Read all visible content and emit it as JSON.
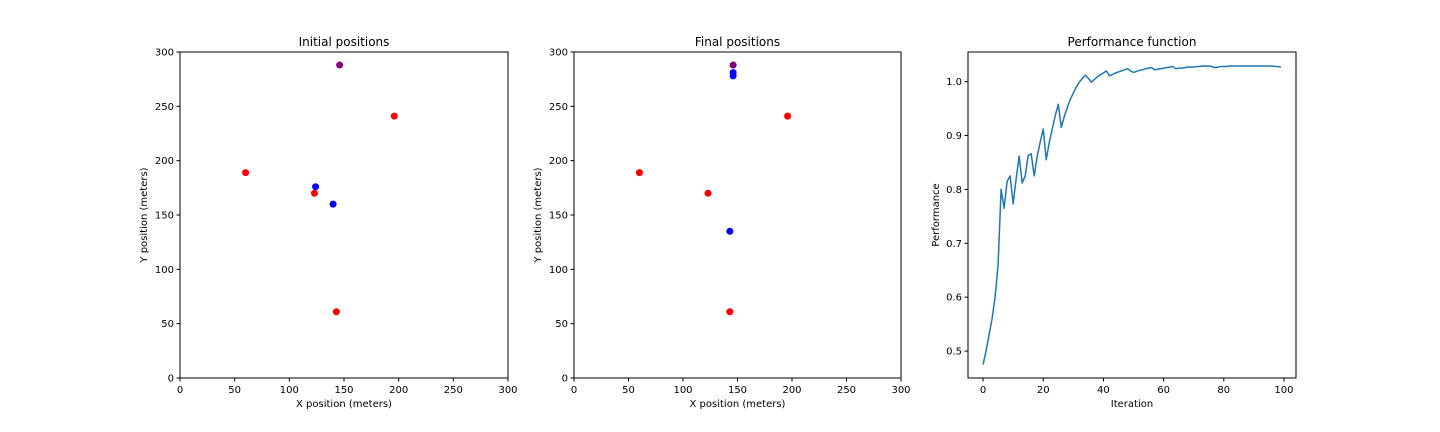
{
  "chart_data": [
    {
      "type": "scatter",
      "title": "Initial positions",
      "xlabel": "X position (meters)",
      "ylabel": "Y position (meters)",
      "xlim": [
        0,
        300
      ],
      "ylim": [
        0,
        300
      ],
      "xticks": [
        "0",
        "50",
        "100",
        "150",
        "200",
        "250",
        "300"
      ],
      "yticks": [
        "0",
        "50",
        "100",
        "150",
        "200",
        "250",
        "300"
      ],
      "points": [
        {
          "x": 146,
          "y": 288,
          "color": "#800080"
        },
        {
          "x": 196,
          "y": 241,
          "color": "#ff0000"
        },
        {
          "x": 60,
          "y": 189,
          "color": "#ff0000"
        },
        {
          "x": 123,
          "y": 170,
          "color": "#ff0000"
        },
        {
          "x": 143,
          "y": 61,
          "color": "#ff0000"
        },
        {
          "x": 124,
          "y": 176,
          "color": "#0000ff"
        },
        {
          "x": 140,
          "y": 160,
          "color": "#0000ff"
        }
      ]
    },
    {
      "type": "scatter",
      "title": "Final positions",
      "xlabel": "X position (meters)",
      "ylabel": "Y position (meters)",
      "xlim": [
        0,
        300
      ],
      "ylim": [
        0,
        300
      ],
      "xticks": [
        "0",
        "50",
        "100",
        "150",
        "200",
        "250",
        "300"
      ],
      "yticks": [
        "0",
        "50",
        "100",
        "150",
        "200",
        "250",
        "300"
      ],
      "points": [
        {
          "x": 146,
          "y": 288,
          "color": "#800080"
        },
        {
          "x": 196,
          "y": 241,
          "color": "#ff0000"
        },
        {
          "x": 60,
          "y": 189,
          "color": "#ff0000"
        },
        {
          "x": 123,
          "y": 170,
          "color": "#ff0000"
        },
        {
          "x": 143,
          "y": 61,
          "color": "#ff0000"
        },
        {
          "x": 146,
          "y": 281,
          "color": "#0000ff"
        },
        {
          "x": 146,
          "y": 278,
          "color": "#0000ff"
        },
        {
          "x": 143,
          "y": 135,
          "color": "#0000ff"
        }
      ]
    },
    {
      "type": "line",
      "title": "Performance function",
      "xlabel": "Iteration",
      "ylabel": "Performance",
      "xlim": [
        -5,
        104
      ],
      "ylim": [
        0.45,
        1.055
      ],
      "xticks": [
        0,
        20,
        40,
        60,
        80,
        100
      ],
      "yticks": [
        0.5,
        0.6,
        0.7,
        0.8,
        0.9,
        1.0
      ],
      "ytick_labels": [
        "0.5",
        "0.6",
        "0.7",
        "0.8",
        "0.9",
        "1.0"
      ],
      "series": [
        {
          "color": "#1f77b4",
          "x": [
            0,
            1,
            2,
            3,
            4,
            5,
            6,
            7,
            8,
            9,
            10,
            11,
            12,
            13,
            14,
            15,
            16,
            17,
            18,
            19,
            20,
            21,
            22,
            23,
            24,
            25,
            26,
            27,
            28,
            29,
            30,
            31,
            32,
            33,
            34,
            35,
            36,
            37,
            38,
            39,
            40,
            41,
            42,
            43,
            44,
            45,
            46,
            47,
            48,
            49,
            50,
            51,
            52,
            53,
            54,
            55,
            56,
            57,
            58,
            59,
            60,
            61,
            62,
            63,
            64,
            65,
            66,
            67,
            68,
            69,
            70,
            71,
            72,
            73,
            74,
            75,
            76,
            77,
            78,
            79,
            80,
            81,
            82,
            83,
            84,
            85,
            86,
            87,
            88,
            89,
            90,
            91,
            92,
            93,
            94,
            95,
            96,
            97,
            98,
            99
          ],
          "y": [
            0.475,
            0.5,
            0.53,
            0.56,
            0.6,
            0.66,
            0.8,
            0.765,
            0.815,
            0.825,
            0.773,
            0.82,
            0.862,
            0.812,
            0.825,
            0.863,
            0.866,
            0.825,
            0.862,
            0.888,
            0.912,
            0.855,
            0.887,
            0.912,
            0.937,
            0.958,
            0.915,
            0.935,
            0.952,
            0.967,
            0.979,
            0.99,
            0.999,
            1.006,
            1.012,
            1.006,
            0.999,
            1.004,
            1.009,
            1.013,
            1.016,
            1.02,
            1.011,
            1.013,
            1.016,
            1.018,
            1.02,
            1.022,
            1.024,
            1.02,
            1.017,
            1.019,
            1.021,
            1.022,
            1.024,
            1.025,
            1.026,
            1.022,
            1.023,
            1.024,
            1.025,
            1.026,
            1.027,
            1.028,
            1.024,
            1.025,
            1.025,
            1.026,
            1.027,
            1.027,
            1.027,
            1.028,
            1.028,
            1.029,
            1.029,
            1.029,
            1.028,
            1.026,
            1.027,
            1.028,
            1.028,
            1.028,
            1.029,
            1.029,
            1.029,
            1.029,
            1.029,
            1.029,
            1.029,
            1.029,
            1.029,
            1.029,
            1.029,
            1.029,
            1.029,
            1.029,
            1.029,
            1.028,
            1.028,
            1.027
          ]
        }
      ]
    }
  ]
}
